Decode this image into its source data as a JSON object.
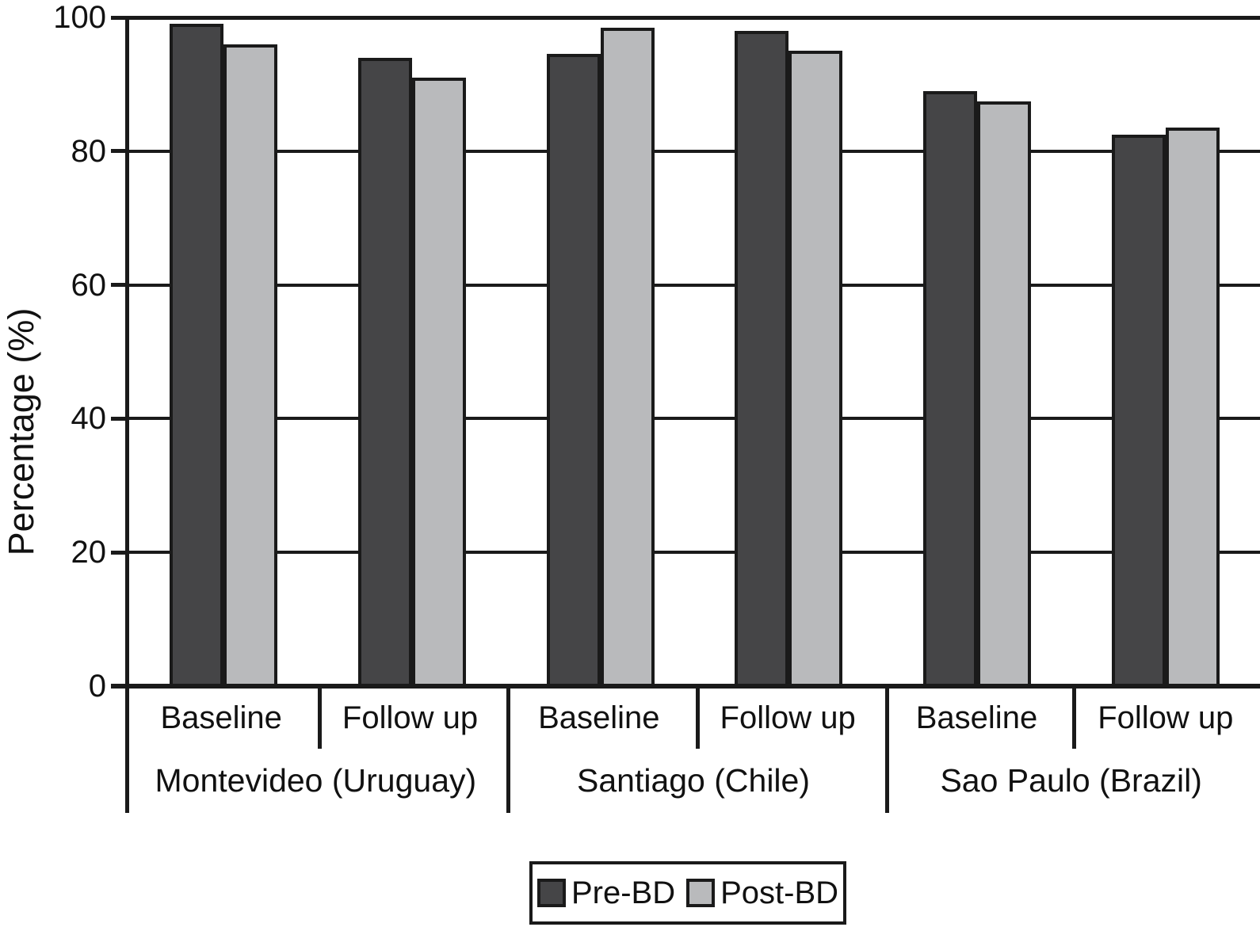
{
  "chart_data": {
    "type": "bar",
    "ylabel": "Percentage (%)",
    "ylim": [
      0,
      100
    ],
    "yticks": [
      0,
      20,
      40,
      60,
      80,
      100
    ],
    "grid": "horizontal",
    "legend_position": "bottom",
    "groups": [
      {
        "city": "Montevideo (Uruguay)",
        "timepoints": [
          "Baseline",
          "Follow up"
        ]
      },
      {
        "city": "Santiago (Chile)",
        "timepoints": [
          "Baseline",
          "Follow up"
        ]
      },
      {
        "city": "Sao Paulo (Brazil)",
        "timepoints": [
          "Baseline",
          "Follow up"
        ]
      }
    ],
    "categories": [
      "Montevideo (Uruguay) Baseline",
      "Montevideo (Uruguay) Follow up",
      "Santiago (Chile) Baseline",
      "Santiago (Chile) Follow up",
      "Sao Paulo (Brazil) Baseline",
      "Sao Paulo (Brazil) Follow up"
    ],
    "series": [
      {
        "name": "Pre-BD",
        "color": "#454547",
        "values": [
          99,
          94,
          94.5,
          98,
          89,
          82.5
        ]
      },
      {
        "name": "Post-BD",
        "color": "#b9babc",
        "values": [
          96,
          91,
          98.5,
          95,
          87.5,
          83.5
        ]
      }
    ]
  },
  "colors": {
    "line": "#1a1a1a",
    "background": "#ffffff",
    "text": "#111111"
  }
}
